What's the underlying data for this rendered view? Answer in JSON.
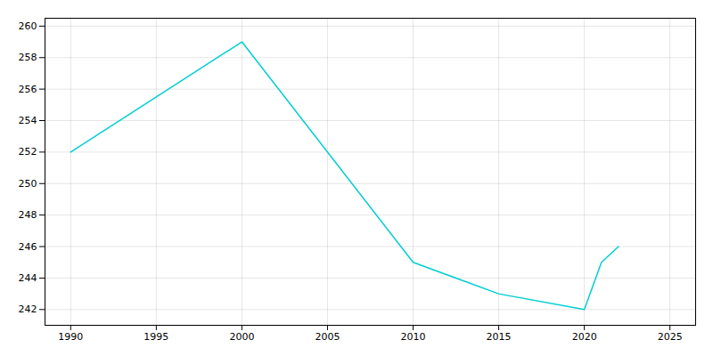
{
  "chart_data": {
    "type": "line",
    "x": [
      1990,
      2000,
      2010,
      2015,
      2020,
      2021,
      2022
    ],
    "values": [
      252,
      259,
      245,
      243,
      242,
      245,
      246
    ],
    "color": "#00CED1",
    "xlim": [
      1988.5,
      2026.5
    ],
    "ylim": [
      241,
      260.5
    ],
    "xticks": [
      1990,
      1995,
      2000,
      2005,
      2010,
      2015,
      2020,
      2025
    ],
    "yticks": [
      242,
      244,
      246,
      248,
      250,
      252,
      254,
      256,
      258,
      260
    ],
    "grid": true
  }
}
